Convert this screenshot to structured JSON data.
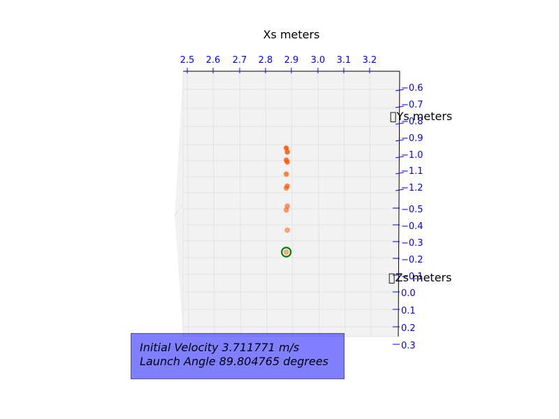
{
  "chart_data": {
    "type": "scatter",
    "projection": "3d",
    "x_axis": {
      "label": "Xs meters",
      "ticks": [
        "2.5",
        "2.6",
        "2.7",
        "2.8",
        "2.9",
        "3.0",
        "3.1",
        "3.2"
      ]
    },
    "y_axis": {
      "label": "\u0000Ys meters",
      "ticks": [
        "−0.6",
        "−0.7",
        "−0.8",
        "−0.9",
        "−1.0",
        "−1.1",
        "−1.2"
      ]
    },
    "z_axis": {
      "label": "\u0000Zs meters",
      "ticks": [
        "−0.5",
        "−0.4",
        "−0.3",
        "−0.2",
        "−0.1",
        "0.0",
        "0.1",
        "0.2",
        "0.3"
      ]
    },
    "series": [
      {
        "marker_color": "#ff5500",
        "points": [
          {
            "x": 2.88,
            "y": -1.0,
            "z": -0.2
          },
          {
            "x": 2.88,
            "y": -1.0,
            "z": -0.31
          },
          {
            "x": 2.88,
            "y": -1.0,
            "z": -0.41
          },
          {
            "x": 2.88,
            "y": -1.0,
            "z": -0.43
          },
          {
            "x": 2.88,
            "y": -1.0,
            "z": -0.52
          },
          {
            "x": 2.88,
            "y": -1.0,
            "z": -0.53
          },
          {
            "x": 2.88,
            "y": -1.0,
            "z": -0.59
          },
          {
            "x": 2.88,
            "y": -1.0,
            "z": -0.65
          },
          {
            "x": 2.88,
            "y": -1.0,
            "z": -0.66
          },
          {
            "x": 2.88,
            "y": -1.0,
            "z": -0.7
          },
          {
            "x": 2.88,
            "y": -1.0,
            "z": -0.72
          }
        ],
        "highlight": {
          "x": 2.88,
          "y": -1.0,
          "z": -0.2,
          "ring_color": "#008000"
        }
      }
    ],
    "grid": true,
    "pane_color": "#f2f2f2"
  },
  "info_box": {
    "velocity_line": "Initial Velocity 3.711771 m/s",
    "angle_line": "Launch Angle 89.804765 degrees",
    "background": "#8080ff"
  }
}
